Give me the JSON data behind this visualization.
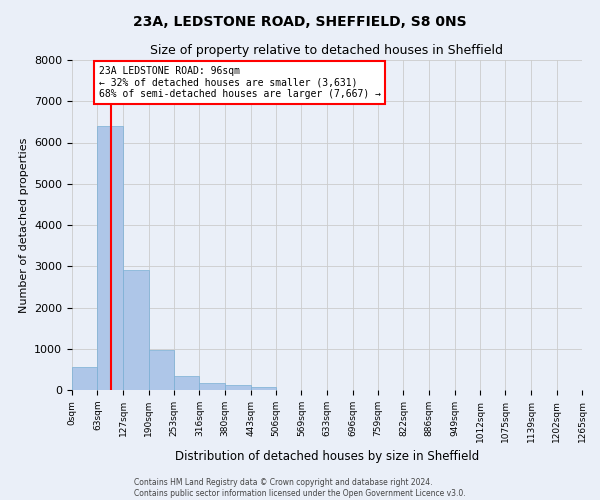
{
  "title": "23A, LEDSTONE ROAD, SHEFFIELD, S8 0NS",
  "subtitle": "Size of property relative to detached houses in Sheffield",
  "xlabel": "Distribution of detached houses by size in Sheffield",
  "ylabel": "Number of detached properties",
  "footer_line1": "Contains HM Land Registry data © Crown copyright and database right 2024.",
  "footer_line2": "Contains public sector information licensed under the Open Government Licence v3.0.",
  "bar_edges": [
    0,
    63,
    127,
    190,
    253,
    316,
    380,
    443,
    506,
    569,
    633,
    696,
    759,
    822,
    886,
    949,
    1012,
    1075,
    1139,
    1202,
    1265
  ],
  "bar_heights": [
    550,
    6400,
    2920,
    970,
    340,
    160,
    110,
    80,
    0,
    0,
    0,
    0,
    0,
    0,
    0,
    0,
    0,
    0,
    0,
    0
  ],
  "bar_color": "#aec6e8",
  "bar_edgecolor": "#7aafd4",
  "bar_linewidth": 0.5,
  "grid_color": "#cccccc",
  "background_color": "#eaeff8",
  "ylim": [
    0,
    8000
  ],
  "yticks": [
    0,
    1000,
    2000,
    3000,
    4000,
    5000,
    6000,
    7000,
    8000
  ],
  "red_line_x": 96,
  "annotation_text_line1": "23A LEDSTONE ROAD: 96sqm",
  "annotation_text_line2": "← 32% of detached houses are smaller (3,631)",
  "annotation_text_line3": "68% of semi-detached houses are larger (7,667) →",
  "annotation_box_color": "white",
  "annotation_box_edgecolor": "red",
  "red_line_color": "red",
  "tick_labels": [
    "0sqm",
    "63sqm",
    "127sqm",
    "190sqm",
    "253sqm",
    "316sqm",
    "380sqm",
    "443sqm",
    "506sqm",
    "569sqm",
    "633sqm",
    "696sqm",
    "759sqm",
    "822sqm",
    "886sqm",
    "949sqm",
    "1012sqm",
    "1075sqm",
    "1139sqm",
    "1202sqm",
    "1265sqm"
  ]
}
